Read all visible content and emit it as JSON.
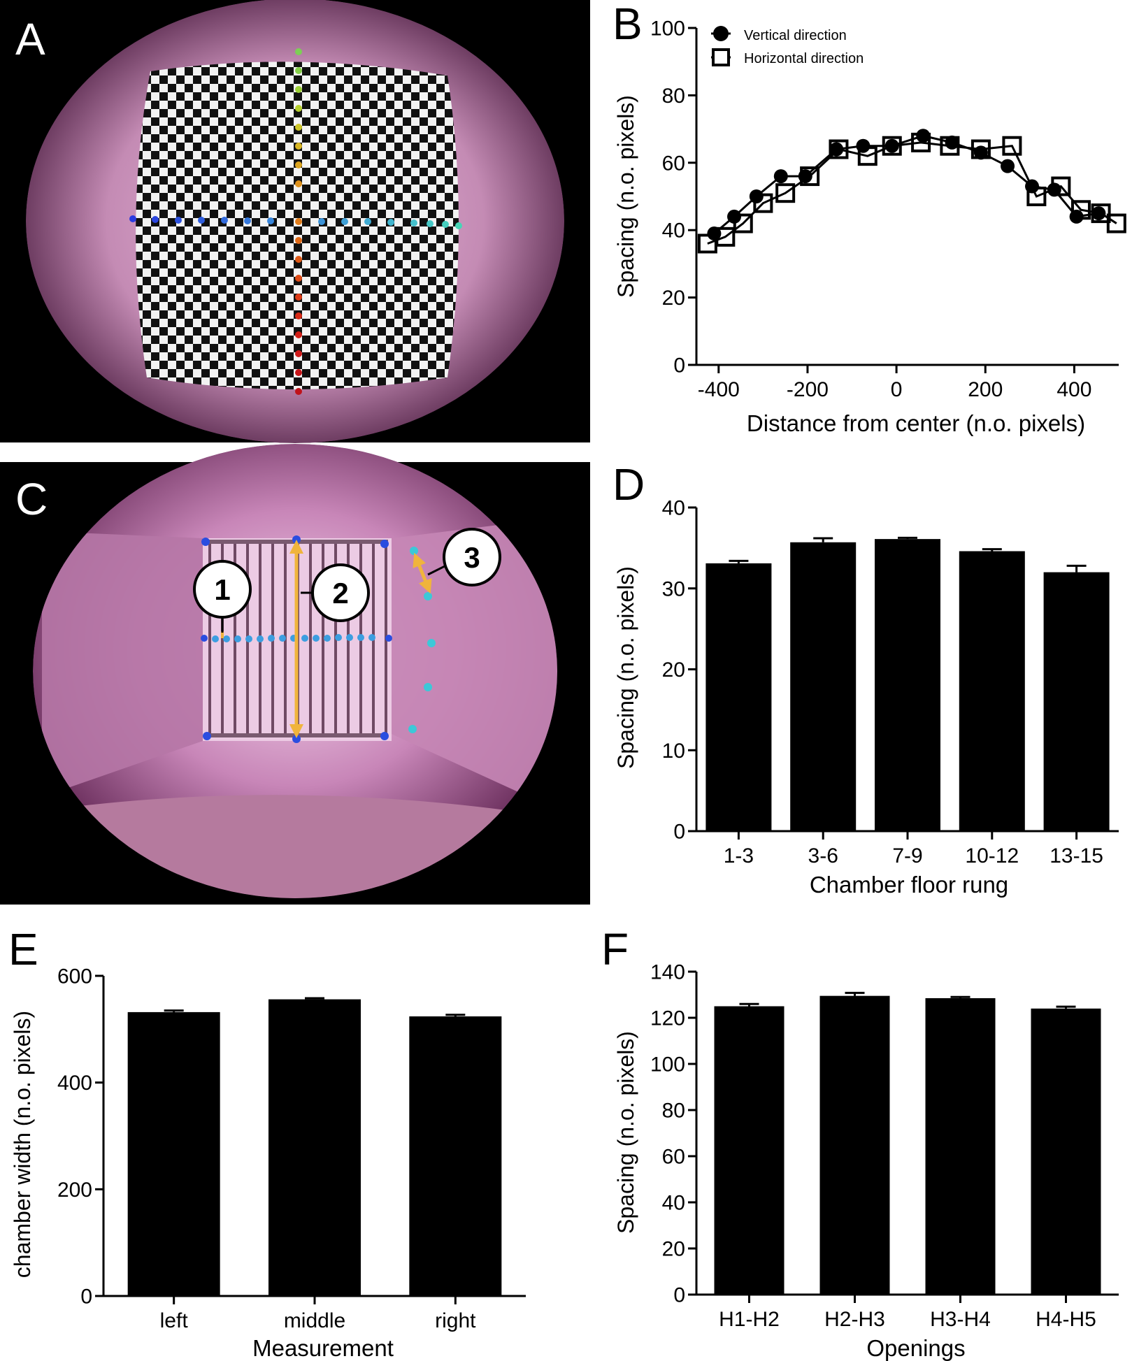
{
  "panels": {
    "A": {
      "letter": "A"
    },
    "B": {
      "letter": "B"
    },
    "C": {
      "letter": "C",
      "callouts": [
        "1",
        "2",
        "3"
      ]
    },
    "D": {
      "letter": "D"
    },
    "E": {
      "letter": "E"
    },
    "F": {
      "letter": "F"
    }
  },
  "colors": {
    "photo_background": "#000000",
    "photo_tint": "#c98bb5",
    "arrow": "#f0b43c",
    "dot_blue": "#2a4de0",
    "dot_cyan": "#3cc8d8",
    "bars": "#000000"
  },
  "icons": {
    "legend_vertical": "filled-circle-marker",
    "legend_horizontal": "open-square-marker"
  },
  "chart_data": [
    {
      "panel": "B",
      "type": "line",
      "xlabel": "Distance from center (n.o. pixels)",
      "ylabel": "Spacing (n.o. pixels)",
      "xlim": [
        -450,
        500
      ],
      "ylim": [
        0,
        100
      ],
      "xticks": [
        -400,
        -200,
        0,
        200,
        400
      ],
      "xtick_labels": [
        "-400",
        "-200",
        "0",
        "200",
        "400"
      ],
      "yticks": [
        0,
        20,
        40,
        60,
        80,
        100
      ],
      "ytick_labels": [
        "0",
        "20",
        "40",
        "60",
        "80",
        "100"
      ],
      "legend_position": "top-left",
      "grid": false,
      "series": [
        {
          "name": "Vertical direction",
          "marker": "filled-circle",
          "x": [
            -410,
            -365,
            -315,
            -260,
            -205,
            -135,
            -75,
            -10,
            60,
            125,
            190,
            250,
            305,
            355,
            405,
            455
          ],
          "y": [
            39,
            44,
            50,
            56,
            56,
            64,
            65,
            65,
            68,
            66,
            63,
            59,
            53,
            52,
            44,
            45
          ]
        },
        {
          "name": "Horizontal direction",
          "marker": "open-square",
          "x": [
            -425,
            -385,
            -345,
            -300,
            -250,
            -195,
            -130,
            -65,
            -10,
            55,
            120,
            190,
            260,
            315,
            370,
            415,
            460,
            495
          ],
          "y": [
            36,
            38,
            42,
            48,
            51,
            56,
            64,
            62,
            65,
            66,
            65,
            64,
            65,
            50,
            53,
            46,
            45,
            42
          ]
        }
      ]
    },
    {
      "panel": "D",
      "type": "bar",
      "xlabel": "Chamber floor rung",
      "ylabel": "Spacing (n.o. pixels)",
      "categories": [
        "1-3",
        "3-6",
        "7-9",
        "10-12",
        "13-15"
      ],
      "values": [
        33.1,
        35.7,
        36.1,
        34.6,
        32.0
      ],
      "errors": [
        0.3,
        0.5,
        0.15,
        0.25,
        0.8
      ],
      "ylim": [
        0,
        40
      ],
      "yticks": [
        0,
        10,
        20,
        30,
        40
      ],
      "ytick_labels": [
        "0",
        "10",
        "20",
        "30",
        "40"
      ]
    },
    {
      "panel": "E",
      "type": "bar",
      "xlabel": "Measurement",
      "ylabel": "chamber width (n.o. pixels)",
      "categories": [
        "left",
        "middle",
        "right"
      ],
      "values": [
        532,
        556,
        524
      ],
      "errors": [
        3,
        2,
        3
      ],
      "ylim": [
        0,
        600
      ],
      "yticks": [
        0,
        200,
        400,
        600
      ],
      "ytick_labels": [
        "0",
        "200",
        "400",
        "600"
      ]
    },
    {
      "panel": "F",
      "type": "bar",
      "xlabel": "Openings",
      "ylabel": "Spacing (n.o. pixels)",
      "categories": [
        "H1-H2",
        "H2-H3",
        "H3-H4",
        "H4-H5"
      ],
      "values": [
        125,
        129.5,
        128.5,
        124
      ],
      "errors": [
        1,
        1.3,
        0.5,
        0.8
      ],
      "ylim": [
        0,
        140
      ],
      "yticks": [
        0,
        20,
        40,
        60,
        80,
        100,
        120,
        140
      ],
      "ytick_labels": [
        "0",
        "20",
        "40",
        "60",
        "80",
        "100",
        "120",
        "140"
      ]
    }
  ]
}
